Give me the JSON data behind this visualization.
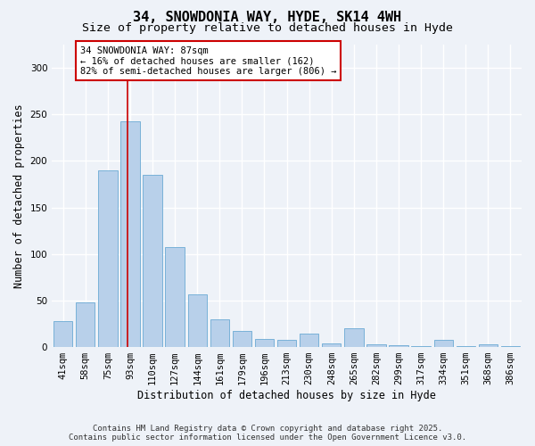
{
  "title_line1": "34, SNOWDONIA WAY, HYDE, SK14 4WH",
  "title_line2": "Size of property relative to detached houses in Hyde",
  "xlabel": "Distribution of detached houses by size in Hyde",
  "ylabel": "Number of detached properties",
  "categories": [
    "41sqm",
    "58sqm",
    "75sqm",
    "93sqm",
    "110sqm",
    "127sqm",
    "144sqm",
    "161sqm",
    "179sqm",
    "196sqm",
    "213sqm",
    "230sqm",
    "248sqm",
    "265sqm",
    "282sqm",
    "299sqm",
    "317sqm",
    "334sqm",
    "351sqm",
    "368sqm",
    "386sqm"
  ],
  "values": [
    28,
    48,
    190,
    243,
    185,
    107,
    57,
    30,
    17,
    9,
    8,
    14,
    4,
    20,
    3,
    2,
    1,
    8,
    1,
    3,
    1
  ],
  "bar_color": "#b8d0ea",
  "bar_edge_color": "#6aaad4",
  "vline_x": 2.88,
  "vline_color": "#cc0000",
  "annotation_text": "34 SNOWDONIA WAY: 87sqm\n← 16% of detached houses are smaller (162)\n82% of semi-detached houses are larger (806) →",
  "annotation_box_color": "#ffffff",
  "annotation_box_edge_color": "#cc0000",
  "ylim": [
    0,
    325
  ],
  "yticks": [
    0,
    50,
    100,
    150,
    200,
    250,
    300
  ],
  "footnote_line1": "Contains HM Land Registry data © Crown copyright and database right 2025.",
  "footnote_line2": "Contains public sector information licensed under the Open Government Licence v3.0.",
  "background_color": "#eef2f8",
  "grid_color": "#ffffff",
  "title_fontsize": 11,
  "subtitle_fontsize": 9.5,
  "label_fontsize": 8.5,
  "tick_fontsize": 7.5,
  "annotation_fontsize": 7.5,
  "footnote_fontsize": 6.5,
  "bar_width": 0.85
}
